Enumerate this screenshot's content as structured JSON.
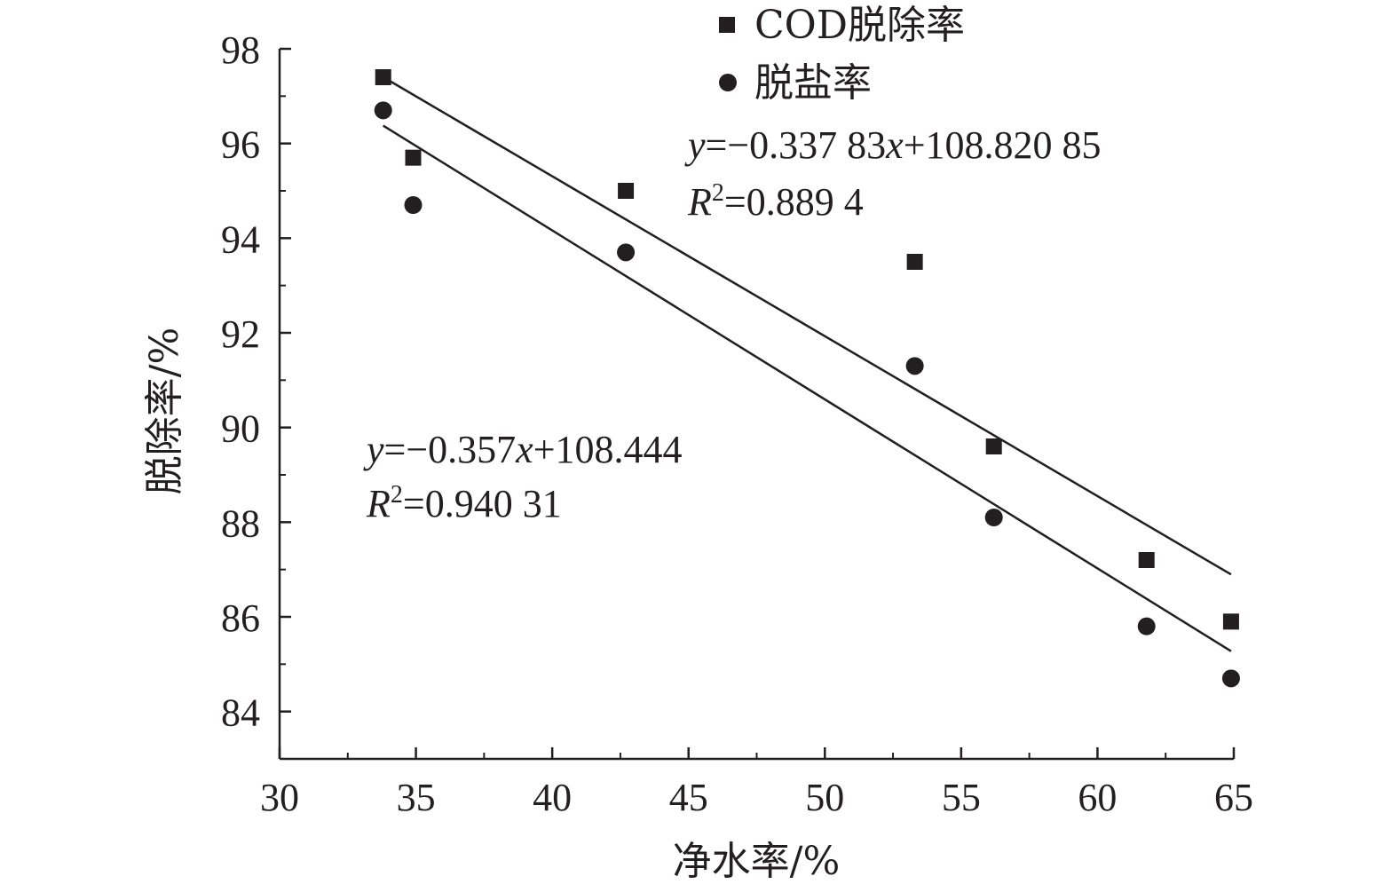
{
  "chart_data": {
    "type": "scatter",
    "xlabel": "净水率/%",
    "ylabel": "脱除率/%",
    "xlim": [
      30,
      65
    ],
    "ylim": [
      83,
      98
    ],
    "x_ticks": [
      "30",
      "35",
      "40",
      "45",
      "50",
      "55",
      "60",
      "65"
    ],
    "y_ticks": [
      "84",
      "86",
      "88",
      "90",
      "92",
      "94",
      "96",
      "98"
    ],
    "grid": false,
    "legend_position": "top-center",
    "series": [
      {
        "name": "COD脱除率",
        "marker": "square",
        "color": "#231f20",
        "x": [
          33.8,
          34.9,
          42.7,
          53.3,
          56.2,
          61.8,
          64.9
        ],
        "y": [
          97.4,
          95.7,
          95.0,
          93.5,
          89.6,
          87.2,
          85.9
        ],
        "fit": {
          "slope": -0.33783,
          "intercept": 108.82085,
          "x_range": [
            33.8,
            64.9
          ],
          "equation_parts": [
            "y",
            "=−0.337 83",
            "x",
            "+108.820 85"
          ],
          "r2_parts": [
            "R",
            "2",
            "=0.889 4"
          ]
        }
      },
      {
        "name": "脱盐率",
        "marker": "circle",
        "color": "#231f20",
        "x": [
          33.8,
          34.9,
          42.7,
          53.3,
          56.2,
          61.8,
          64.9
        ],
        "y": [
          96.7,
          94.7,
          93.7,
          91.3,
          88.1,
          85.8,
          84.7
        ],
        "fit": {
          "slope": -0.357,
          "intercept": 108.444,
          "x_range": [
            33.8,
            64.9
          ],
          "equation_parts": [
            "y",
            "=−0.357",
            "x",
            "+108.444"
          ],
          "r2_parts": [
            "R",
            "2",
            "=0.940 31"
          ]
        }
      }
    ]
  }
}
